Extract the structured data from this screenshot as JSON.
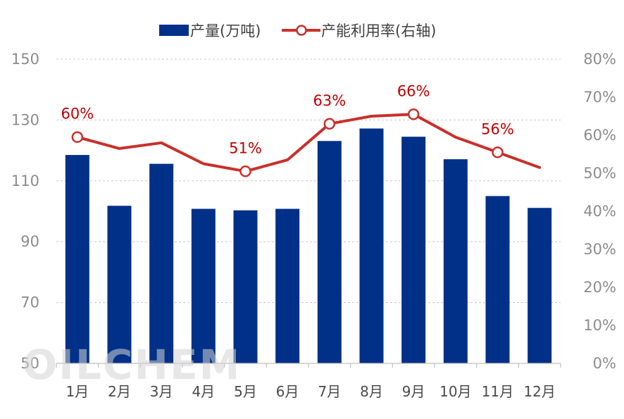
{
  "chart_data": {
    "type": "bar",
    "categories": [
      "1月",
      "2月",
      "3月",
      "4月",
      "5月",
      "6月",
      "7月",
      "8月",
      "9月",
      "10月",
      "11月",
      "12月"
    ],
    "series": [
      {
        "name": "产量(万吨)",
        "type": "bar",
        "axis": "left",
        "color": "#003087",
        "values": [
          118.5,
          101.8,
          115.6,
          100.8,
          100.3,
          100.8,
          123.1,
          127.2,
          124.5,
          117.1,
          105.0,
          101.1
        ]
      },
      {
        "name": "产能利用率(右轴)",
        "type": "line",
        "axis": "right",
        "color": "#c8302b",
        "values": [
          0.595,
          0.565,
          0.58,
          0.525,
          0.505,
          0.535,
          0.63,
          0.65,
          0.655,
          0.595,
          0.555,
          0.515
        ],
        "marker_indices": [
          0,
          4,
          6,
          8,
          10
        ],
        "labels": [
          "60%",
          "",
          "",
          "",
          "51%",
          "",
          "63%",
          "",
          "66%",
          "",
          "56%",
          ""
        ]
      }
    ],
    "y_left": {
      "min": 50,
      "max": 150,
      "ticks": [
        "50",
        "70",
        "90",
        "110",
        "130",
        "150"
      ]
    },
    "y_right": {
      "min": 0,
      "max": 0.8,
      "ticks": [
        "0%",
        "10%",
        "20%",
        "30%",
        "40%",
        "50%",
        "60%",
        "70%",
        "80%"
      ]
    },
    "grid": "dashed horizontal",
    "legend_position": "top"
  },
  "watermark": "OILCHEM"
}
